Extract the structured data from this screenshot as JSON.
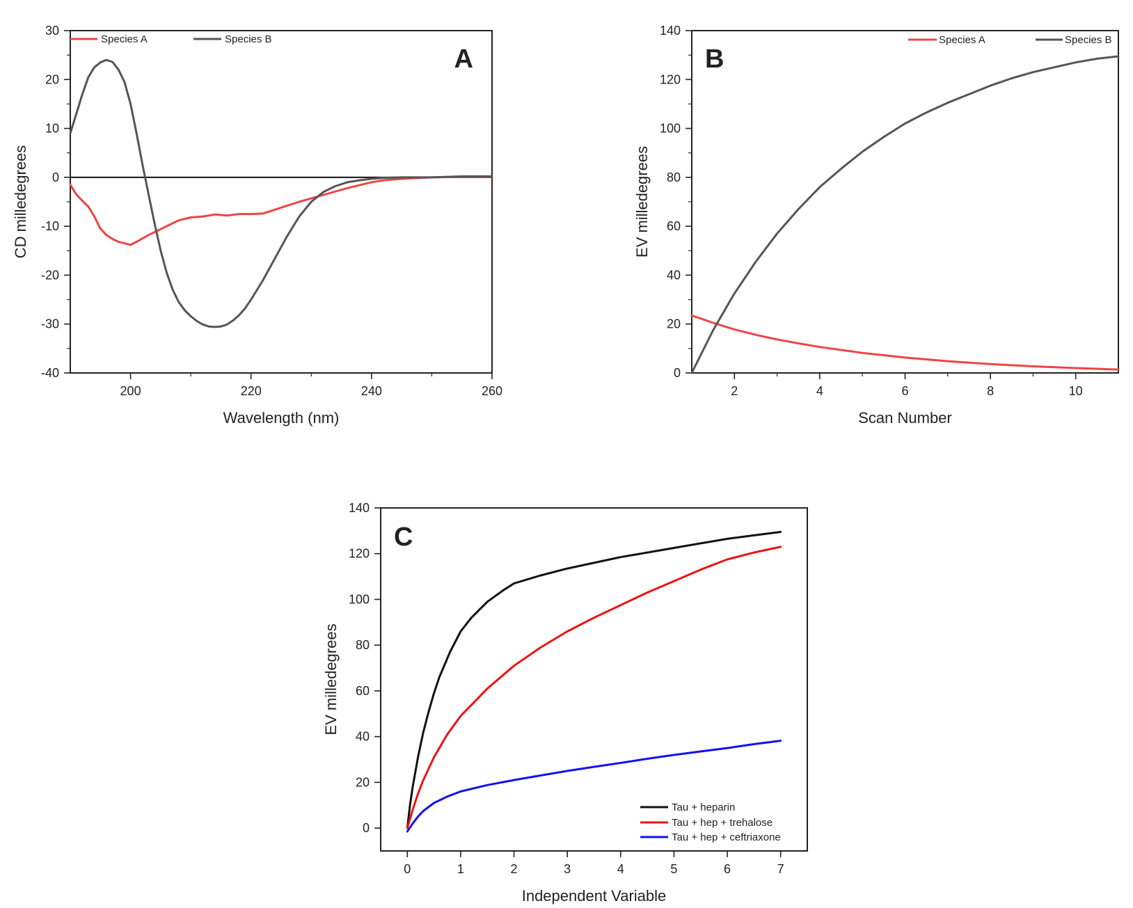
{
  "chart_data": [
    {
      "panel": "A",
      "type": "line",
      "panel_label": "A",
      "xlabel": "Wavelength (nm)",
      "ylabel": "CD milledegrees",
      "xlim": [
        190,
        260
      ],
      "ylim": [
        -40,
        30
      ],
      "xticks": [
        200,
        220,
        240,
        260
      ],
      "yticks": [
        -40,
        -30,
        -20,
        -10,
        0,
        10,
        20,
        30
      ],
      "zero_line": true,
      "legend": "top",
      "series": [
        {
          "name": "Species A",
          "color": "#ee4444",
          "x": [
            190,
            191,
            192,
            193,
            194,
            195,
            196,
            197,
            198,
            199,
            200,
            201,
            202,
            203,
            204,
            205,
            206,
            208,
            210,
            212,
            214,
            216,
            218,
            220,
            222,
            224,
            226,
            228,
            230,
            232,
            234,
            236,
            238,
            240,
            242,
            245,
            250,
            255,
            260
          ],
          "y": [
            -1.5,
            -3.5,
            -4.8,
            -6,
            -8,
            -10.5,
            -11.8,
            -12.6,
            -13.2,
            -13.5,
            -13.8,
            -13.2,
            -12.5,
            -11.8,
            -11.2,
            -10.6,
            -10,
            -8.8,
            -8.2,
            -8,
            -7.6,
            -7.8,
            -7.5,
            -7.5,
            -7.4,
            -6.6,
            -5.8,
            -5,
            -4.3,
            -3.6,
            -2.9,
            -2.2,
            -1.6,
            -1,
            -0.6,
            -0.3,
            0,
            0.1,
            0.1
          ]
        },
        {
          "name": "Species B",
          "color": "#555555",
          "x": [
            190,
            191,
            192,
            193,
            194,
            195,
            196,
            197,
            198,
            199,
            200,
            201,
            202,
            203,
            204,
            205,
            206,
            207,
            208,
            209,
            210,
            211,
            212,
            213,
            214,
            215,
            216,
            217,
            218,
            219,
            220,
            222,
            224,
            226,
            228,
            230,
            232,
            234,
            236,
            238,
            240,
            242,
            245,
            250,
            255,
            260
          ],
          "y": [
            9,
            13,
            17,
            20.5,
            22.5,
            23.5,
            24,
            23.6,
            22,
            19.5,
            15,
            9,
            2.5,
            -3.5,
            -9.5,
            -15,
            -19.5,
            -23,
            -25.5,
            -27.2,
            -28.4,
            -29.4,
            -30.1,
            -30.5,
            -30.6,
            -30.5,
            -30.1,
            -29.3,
            -28.2,
            -26.8,
            -25,
            -21,
            -16.5,
            -12,
            -8,
            -5,
            -3,
            -1.8,
            -1,
            -0.6,
            -0.3,
            -0.1,
            0,
            0,
            0.2,
            0.2
          ]
        }
      ]
    },
    {
      "panel": "B",
      "type": "line",
      "panel_label": "B",
      "xlabel": "Scan Number",
      "ylabel": "EV milledegrees",
      "xlim": [
        1,
        11
      ],
      "ylim": [
        0,
        140
      ],
      "xticks": [
        2,
        4,
        6,
        8,
        10
      ],
      "yticks": [
        0,
        20,
        40,
        60,
        80,
        100,
        120,
        140
      ],
      "legend": "top-right",
      "series": [
        {
          "name": "Species A",
          "color": "#ee4444",
          "x": [
            1,
            1.5,
            2,
            2.5,
            3,
            3.5,
            4,
            5,
            6,
            7,
            8,
            9,
            10,
            11
          ],
          "y": [
            23.5,
            20.5,
            17.8,
            15.6,
            13.7,
            12.1,
            10.6,
            8.2,
            6.3,
            4.8,
            3.6,
            2.7,
            2,
            1.4
          ]
        },
        {
          "name": "Species B",
          "color": "#555555",
          "x": [
            1,
            1.5,
            2,
            2.5,
            3,
            3.5,
            4,
            4.5,
            5,
            5.5,
            6,
            6.5,
            7,
            7.5,
            8,
            8.5,
            9,
            9.5,
            10,
            10.5,
            11
          ],
          "y": [
            0,
            17.5,
            32.5,
            45.5,
            57,
            67,
            76,
            83.5,
            90.5,
            96.5,
            102,
            106.5,
            110.5,
            114,
            117.5,
            120.5,
            123,
            125,
            127,
            128.5,
            129.5
          ]
        }
      ]
    },
    {
      "panel": "C",
      "type": "line",
      "panel_label": "C",
      "xlabel": "Independent Variable",
      "ylabel": "EV milledegrees",
      "xlim": [
        -0.5,
        7.5
      ],
      "ylim": [
        -10,
        140
      ],
      "xticks": [
        0,
        1,
        2,
        3,
        4,
        5,
        6,
        7
      ],
      "yticks": [
        0,
        20,
        40,
        60,
        80,
        100,
        120,
        140
      ],
      "legend": "bottom-right",
      "series": [
        {
          "name": "Tau + heparin",
          "color": "#111111",
          "x": [
            0,
            0.05,
            0.1,
            0.2,
            0.3,
            0.4,
            0.5,
            0.6,
            0.8,
            1,
            1.2,
            1.5,
            1.8,
            2,
            2.5,
            3,
            3.5,
            4,
            4.5,
            5,
            5.5,
            6,
            6.5,
            7
          ],
          "y": [
            0,
            10,
            18,
            31,
            42,
            51,
            59,
            66,
            77,
            86,
            92,
            99,
            104,
            107,
            110.5,
            113.5,
            116,
            118.5,
            120.5,
            122.5,
            124.5,
            126.5,
            128,
            129.5
          ]
        },
        {
          "name": "Tau + hep + trehalose",
          "color": "#ee1111",
          "x": [
            0,
            0.1,
            0.2,
            0.3,
            0.5,
            0.75,
            1,
            1.25,
            1.5,
            2,
            2.5,
            3,
            3.5,
            4,
            4.5,
            5,
            5.5,
            6,
            6.5,
            7
          ],
          "y": [
            0,
            8,
            15,
            21,
            31,
            41,
            49,
            55,
            61,
            71,
            79,
            86,
            92,
            97.5,
            103,
            108,
            113,
            117.5,
            120.5,
            123
          ]
        },
        {
          "name": "Tau + hep + ceftriaxone",
          "color": "#1111ee",
          "x": [
            0,
            0.1,
            0.2,
            0.3,
            0.5,
            0.75,
            1,
            1.5,
            2,
            2.5,
            3,
            3.5,
            4,
            4.5,
            5,
            5.5,
            6,
            6.5,
            7
          ],
          "y": [
            -1.5,
            2,
            5,
            7.5,
            11,
            13.8,
            16,
            18.8,
            21,
            23,
            25,
            26.8,
            28.5,
            30.3,
            32,
            33.5,
            35,
            36.7,
            38.2
          ]
        }
      ]
    }
  ]
}
